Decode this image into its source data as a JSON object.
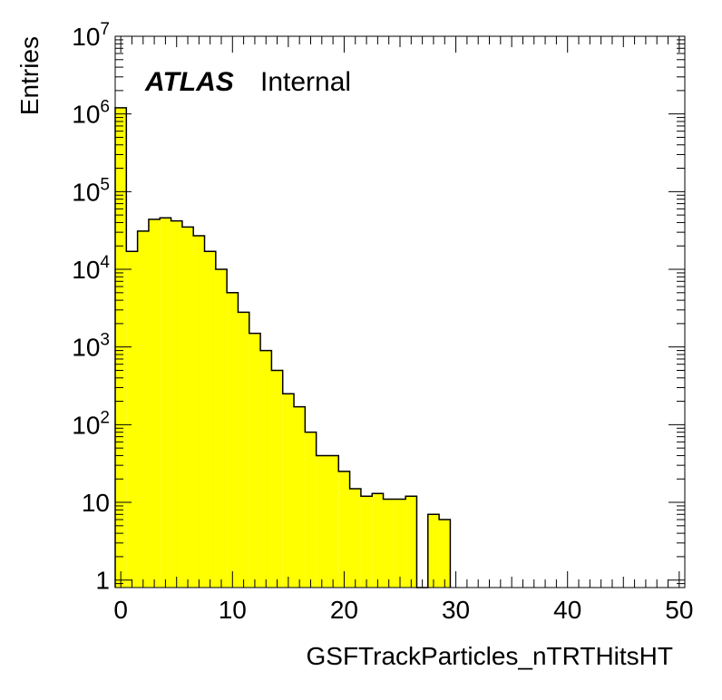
{
  "chart_data": {
    "type": "bar",
    "title": "",
    "xlabel": "GSFTrackParticles_nTRTHitsHT",
    "ylabel": "Entries",
    "atlas_label": "ATLAS",
    "atlas_sublabel": "Internal",
    "xlim": [
      -0.5,
      50.5
    ],
    "ylim": [
      0.8,
      10000000
    ],
    "log_y": true,
    "grid": false,
    "x_ticks": [
      {
        "value": 0,
        "label": "0"
      },
      {
        "value": 10,
        "label": "10"
      },
      {
        "value": 20,
        "label": "20"
      },
      {
        "value": 30,
        "label": "30"
      },
      {
        "value": 40,
        "label": "40"
      },
      {
        "value": 50,
        "label": "50"
      }
    ],
    "y_ticks": [
      {
        "value": 1,
        "label": "1",
        "exp": ""
      },
      {
        "value": 10,
        "label": "10",
        "exp": ""
      },
      {
        "value": 100,
        "label": "10",
        "exp": "2"
      },
      {
        "value": 1000,
        "label": "10",
        "exp": "3"
      },
      {
        "value": 10000,
        "label": "10",
        "exp": "4"
      },
      {
        "value": 100000,
        "label": "10",
        "exp": "5"
      },
      {
        "value": 1000000,
        "label": "10",
        "exp": "6"
      },
      {
        "value": 10000000,
        "label": "10",
        "exp": "7"
      }
    ],
    "bin_width": 1,
    "bin_centers": [
      0,
      1,
      2,
      3,
      4,
      5,
      6,
      7,
      8,
      9,
      10,
      11,
      12,
      13,
      14,
      15,
      16,
      17,
      18,
      19,
      20,
      21,
      22,
      23,
      24,
      25,
      26,
      27,
      28,
      29
    ],
    "values": [
      1200000,
      17000,
      31000,
      44000,
      46000,
      42000,
      35000,
      27000,
      17000,
      10000,
      5000,
      2800,
      1500,
      900,
      500,
      250,
      170,
      80,
      40,
      40,
      25,
      15,
      12,
      13,
      11,
      11,
      12,
      0,
      7,
      6
    ],
    "fill_color": "#ffff00",
    "line_color": "#000000"
  }
}
